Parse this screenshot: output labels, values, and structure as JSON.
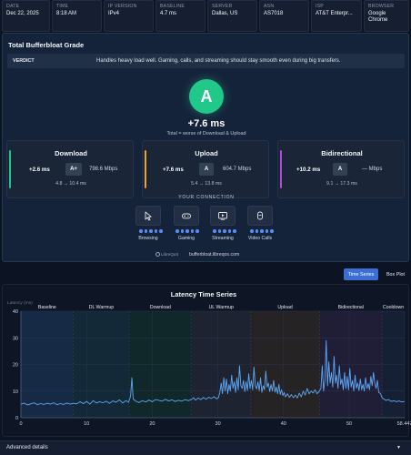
{
  "info": [
    {
      "label": "DATE",
      "value": "Dec 22, 2025"
    },
    {
      "label": "TIME",
      "value": "8:18 AM"
    },
    {
      "label": "IP VERSION",
      "value": "IPv4"
    },
    {
      "label": "BASELINE",
      "value": "4.7 ms"
    },
    {
      "label": "SERVER",
      "value": "Dallas, US"
    },
    {
      "label": "ASN",
      "value": "AS7018"
    },
    {
      "label": "ISP",
      "value": "AT&T Enterpr..."
    },
    {
      "label": "BROWSER",
      "value": "Google Chrome"
    }
  ],
  "grade": {
    "title": "Total Bufferbloat Grade",
    "verdict_label": "VERDICT",
    "verdict_text": "Handles heavy load well. Gaming, calls, and streaming should stay smooth even during big transfers.",
    "letter": "A",
    "value": "+7.6 ms",
    "note": "Total = worse of Download & Upload",
    "color": "#22c78a"
  },
  "metrics": [
    {
      "title": "Download",
      "delta": "+2.6 ms",
      "badge": "A+",
      "speed": "798.6 Mbps",
      "range": "4.8 → 10.4 ms",
      "color": "#22c58b"
    },
    {
      "title": "Upload",
      "delta": "+7.6 ms",
      "badge": "A",
      "speed": "604.7 Mbps",
      "range": "5.4 → 13.8 ms",
      "color": "#f0a32a"
    },
    {
      "title": "Bidirectional",
      "delta": "+10.2 ms",
      "badge": "A",
      "speed": "— Mbps",
      "range": "9.1 → 17.3 ms",
      "color": "#b04bd6"
    }
  ],
  "connection": {
    "title": "YOUR CONNECTION",
    "items": [
      {
        "label": "Browsing",
        "icon": "cursor-icon",
        "rating": 5
      },
      {
        "label": "Gaming",
        "icon": "gamepad-icon",
        "rating": 5
      },
      {
        "label": "Streaming",
        "icon": "play-screen-icon",
        "rating": 5
      },
      {
        "label": "Video Calls",
        "icon": "camera-icon",
        "rating": 5
      }
    ]
  },
  "footer": {
    "logo": "LibreQoS",
    "url": "bufferbloat.libreqos.com"
  },
  "view_toggle": {
    "time_series": "Time Series",
    "box_plot": "Box Plot",
    "active": "time_series"
  },
  "chart_data": {
    "type": "line",
    "title": "Latency Time Series",
    "ylabel": "Latency (ms)",
    "xlim": [
      0,
      58.447
    ],
    "ylim": [
      0,
      40
    ],
    "x_ticks": [
      "0",
      "10",
      "20",
      "30",
      "40",
      "50",
      "58.447"
    ],
    "y_ticks": [
      "0",
      "10",
      "20",
      "30",
      "40"
    ],
    "grid": true,
    "phases": [
      {
        "name": "Baseline",
        "start": 0,
        "end": 8,
        "color": "#1e3a5f"
      },
      {
        "name": "DL Warmup",
        "start": 8,
        "end": 16.5,
        "color": "#173b45"
      },
      {
        "name": "Download",
        "start": 16.5,
        "end": 26,
        "color": "#14392f"
      },
      {
        "name": "UL Warmup",
        "start": 26,
        "end": 35,
        "color": "#2c2f3d"
      },
      {
        "name": "Upload",
        "start": 35,
        "end": 45.5,
        "color": "#3a3022"
      },
      {
        "name": "Bidirectional",
        "start": 45.5,
        "end": 55,
        "color": "#2f2544"
      },
      {
        "name": "Cooldown",
        "start": 55,
        "end": 58.447,
        "color": "#1c2a3f"
      }
    ],
    "series": [
      {
        "color": "#5fa8f5",
        "points": [
          [
            0,
            5
          ],
          [
            0.5,
            5.5
          ],
          [
            1,
            4.8
          ],
          [
            1.5,
            5.2
          ],
          [
            2,
            5.6
          ],
          [
            2.5,
            4.9
          ],
          [
            3,
            5.3
          ],
          [
            3.5,
            5
          ],
          [
            4,
            5.4
          ],
          [
            4.5,
            5.1
          ],
          [
            5,
            5.6
          ],
          [
            5.5,
            4.9
          ],
          [
            6,
            5.3
          ],
          [
            6.5,
            5
          ],
          [
            7,
            5.5
          ],
          [
            7.5,
            5.1
          ],
          [
            8,
            5.4
          ],
          [
            8.5,
            5.2
          ],
          [
            9,
            6
          ],
          [
            9.5,
            5.3
          ],
          [
            10,
            6.1
          ],
          [
            10.5,
            5.1
          ],
          [
            11,
            6.4
          ],
          [
            11.5,
            5.5
          ],
          [
            12,
            6
          ],
          [
            12.5,
            5.6
          ],
          [
            13,
            6.2
          ],
          [
            13.5,
            5.4
          ],
          [
            14,
            6.3
          ],
          [
            14.5,
            5.8
          ],
          [
            15,
            6.7
          ],
          [
            15.5,
            5.5
          ],
          [
            16,
            6.4
          ],
          [
            16.4,
            5.8
          ],
          [
            16.7,
            8
          ],
          [
            16.9,
            15
          ],
          [
            17.1,
            7
          ],
          [
            17.5,
            6.2
          ],
          [
            18,
            5.7
          ],
          [
            18.5,
            6.4
          ],
          [
            19,
            5.9
          ],
          [
            19.5,
            6.6
          ],
          [
            20,
            6
          ],
          [
            20.5,
            6.8
          ],
          [
            21,
            6.5
          ],
          [
            21.5,
            6.2
          ],
          [
            22,
            6.9
          ],
          [
            22.5,
            6.3
          ],
          [
            23,
            6.7
          ],
          [
            23.5,
            6.1
          ],
          [
            24,
            6.5
          ],
          [
            24.5,
            6.2
          ],
          [
            25,
            6.8
          ],
          [
            25.5,
            6.4
          ],
          [
            26,
            6.9
          ],
          [
            26.3,
            7.5
          ],
          [
            26.6,
            6.6
          ],
          [
            27,
            7.4
          ],
          [
            27.4,
            6.8
          ],
          [
            27.8,
            7.6
          ],
          [
            28.2,
            6.9
          ],
          [
            28.6,
            7.7
          ],
          [
            29,
            7.2
          ],
          [
            29.4,
            7.9
          ],
          [
            29.8,
            7.1
          ],
          [
            30.1,
            7.6
          ],
          [
            30.3,
            9.5
          ],
          [
            30.5,
            13
          ],
          [
            30.7,
            9
          ],
          [
            30.9,
            15
          ],
          [
            31.1,
            10
          ],
          [
            31.3,
            14.5
          ],
          [
            31.5,
            9
          ],
          [
            31.7,
            12.5
          ],
          [
            31.9,
            10
          ],
          [
            32.1,
            16
          ],
          [
            32.3,
            11
          ],
          [
            32.5,
            13.5
          ],
          [
            32.7,
            9.5
          ],
          [
            32.9,
            15
          ],
          [
            33.1,
            10.5
          ],
          [
            33.3,
            19.5
          ],
          [
            33.5,
            12
          ],
          [
            33.7,
            11
          ],
          [
            33.9,
            14
          ],
          [
            34.1,
            9.8
          ],
          [
            34.3,
            13.5
          ],
          [
            34.5,
            10.2
          ],
          [
            34.7,
            16.5
          ],
          [
            34.9,
            11
          ],
          [
            35.1,
            14
          ],
          [
            35.3,
            10.5
          ],
          [
            35.5,
            19
          ],
          [
            35.7,
            12
          ],
          [
            35.9,
            10.8
          ],
          [
            36.1,
            13.5
          ],
          [
            36.3,
            10.2
          ],
          [
            36.5,
            15
          ],
          [
            36.7,
            9.5
          ],
          [
            36.9,
            12
          ],
          [
            37.1,
            10.5
          ],
          [
            37.3,
            17.5
          ],
          [
            37.5,
            11.5
          ],
          [
            37.7,
            13
          ],
          [
            37.9,
            9.8
          ],
          [
            38.1,
            12.5
          ],
          [
            38.3,
            10
          ],
          [
            38.5,
            14
          ],
          [
            38.7,
            9.6
          ],
          [
            38.9,
            11.5
          ],
          [
            39.1,
            9
          ],
          [
            39.3,
            12.5
          ],
          [
            39.5,
            8.7
          ],
          [
            39.7,
            10.5
          ],
          [
            39.9,
            8.3
          ],
          [
            40.1,
            9.5
          ],
          [
            40.3,
            7.8
          ],
          [
            40.6,
            9
          ],
          [
            40.9,
            7.6
          ],
          [
            41.2,
            8.7
          ],
          [
            41.5,
            7.5
          ],
          [
            41.8,
            8.5
          ],
          [
            42.1,
            7.4
          ],
          [
            42.4,
            9.2
          ],
          [
            42.7,
            7.8
          ],
          [
            43,
            10
          ],
          [
            43.3,
            8.5
          ],
          [
            43.6,
            11
          ],
          [
            43.9,
            9
          ],
          [
            44.2,
            10
          ],
          [
            44.5,
            9.3
          ],
          [
            44.8,
            10.5
          ],
          [
            45.1,
            9
          ],
          [
            45.4,
            9.8
          ],
          [
            45.7,
            11
          ],
          [
            45.9,
            19.5
          ],
          [
            46.1,
            10
          ],
          [
            46.3,
            14
          ],
          [
            46.5,
            29
          ],
          [
            46.7,
            12
          ],
          [
            46.9,
            21
          ],
          [
            47.1,
            13
          ],
          [
            47.3,
            17
          ],
          [
            47.5,
            11.5
          ],
          [
            47.7,
            23
          ],
          [
            47.9,
            13
          ],
          [
            48.1,
            16
          ],
          [
            48.3,
            11
          ],
          [
            48.5,
            19.5
          ],
          [
            48.7,
            12.5
          ],
          [
            48.9,
            14.5
          ],
          [
            49.1,
            10.5
          ],
          [
            49.3,
            17
          ],
          [
            49.5,
            11
          ],
          [
            49.7,
            15.5
          ],
          [
            49.9,
            10.5
          ],
          [
            50.1,
            18.5
          ],
          [
            50.3,
            11.5
          ],
          [
            50.5,
            14
          ],
          [
            50.7,
            10
          ],
          [
            50.9,
            16
          ],
          [
            51.1,
            11
          ],
          [
            51.3,
            13
          ],
          [
            51.5,
            10.2
          ],
          [
            51.7,
            14.5
          ],
          [
            51.9,
            10.5
          ],
          [
            52.1,
            12.5
          ],
          [
            52.3,
            10
          ],
          [
            52.5,
            15
          ],
          [
            52.7,
            11
          ],
          [
            52.9,
            12.8
          ],
          [
            53.1,
            10.5
          ],
          [
            53.3,
            15.5
          ],
          [
            53.5,
            12
          ],
          [
            53.7,
            17
          ],
          [
            53.9,
            13
          ],
          [
            54.1,
            11
          ],
          [
            54.3,
            14
          ],
          [
            54.5,
            9.5
          ],
          [
            54.8,
            9
          ],
          [
            55,
            7.5
          ],
          [
            55.3,
            7
          ],
          [
            55.6,
            6.5
          ],
          [
            56,
            6.8
          ],
          [
            56.4,
            6.1
          ],
          [
            56.8,
            6.4
          ],
          [
            57.2,
            6
          ],
          [
            57.6,
            6.3
          ],
          [
            58,
            5.9
          ],
          [
            58.447,
            6.1
          ]
        ]
      }
    ]
  },
  "advanced": {
    "label": "Advanced details"
  }
}
